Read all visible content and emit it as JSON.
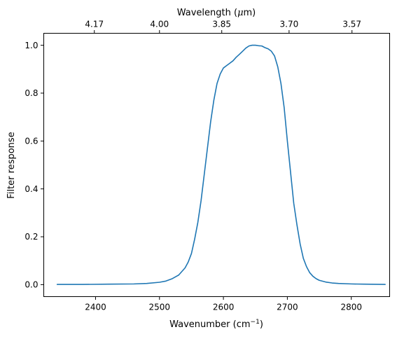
{
  "chart_data": {
    "type": "line",
    "xlabel": "Wavenumber (cm",
    "xlabel_sup": "−1",
    "xlabel_suffix": ")",
    "ylabel": "Filter response",
    "top_xlabel_prefix": "Wavelength (",
    "top_xlabel_mu": "μ",
    "top_xlabel_suffix": "m)",
    "xlim": [
      2319,
      2860
    ],
    "ylim": [
      -0.05,
      1.05
    ],
    "x_ticks": [
      2400,
      2500,
      2600,
      2700,
      2800
    ],
    "x_tick_labels": [
      "2400",
      "2500",
      "2600",
      "2700",
      "2800"
    ],
    "y_ticks": [
      0.0,
      0.2,
      0.4,
      0.6,
      0.8,
      1.0
    ],
    "y_tick_labels": [
      "0.0",
      "0.2",
      "0.4",
      "0.6",
      "0.8",
      "1.0"
    ],
    "top_ticks": [
      {
        "label": "4.17",
        "wavenumber": 2398.1
      },
      {
        "label": "4.00",
        "wavenumber": 2500.0
      },
      {
        "label": "3.85",
        "wavenumber": 2597.4
      },
      {
        "label": "3.70",
        "wavenumber": 2702.7
      },
      {
        "label": "3.57",
        "wavenumber": 2801.1
      }
    ],
    "grid": false,
    "line_color": "#1f77b4",
    "series": [
      {
        "x": [
          2340,
          2380,
          2420,
          2460,
          2480,
          2500,
          2510,
          2520,
          2530,
          2540,
          2545,
          2550,
          2555,
          2560,
          2565,
          2570,
          2575,
          2580,
          2585,
          2590,
          2595,
          2600,
          2605,
          2610,
          2615,
          2620,
          2625,
          2630,
          2635,
          2640,
          2645,
          2650,
          2655,
          2660,
          2665,
          2670,
          2675,
          2680,
          2685,
          2690,
          2695,
          2700,
          2705,
          2710,
          2715,
          2720,
          2725,
          2730,
          2735,
          2740,
          2745,
          2750,
          2760,
          2770,
          2780,
          2800,
          2820,
          2853
        ],
        "y": [
          0.001,
          0.001,
          0.002,
          0.003,
          0.005,
          0.01,
          0.015,
          0.025,
          0.04,
          0.07,
          0.095,
          0.13,
          0.19,
          0.26,
          0.35,
          0.46,
          0.57,
          0.68,
          0.77,
          0.84,
          0.88,
          0.905,
          0.915,
          0.925,
          0.935,
          0.95,
          0.962,
          0.975,
          0.988,
          0.997,
          1.0,
          1.0,
          0.998,
          0.997,
          0.99,
          0.985,
          0.975,
          0.955,
          0.91,
          0.84,
          0.74,
          0.6,
          0.47,
          0.34,
          0.25,
          0.17,
          0.11,
          0.075,
          0.05,
          0.035,
          0.025,
          0.018,
          0.011,
          0.007,
          0.005,
          0.003,
          0.002,
          0.001
        ]
      }
    ]
  }
}
